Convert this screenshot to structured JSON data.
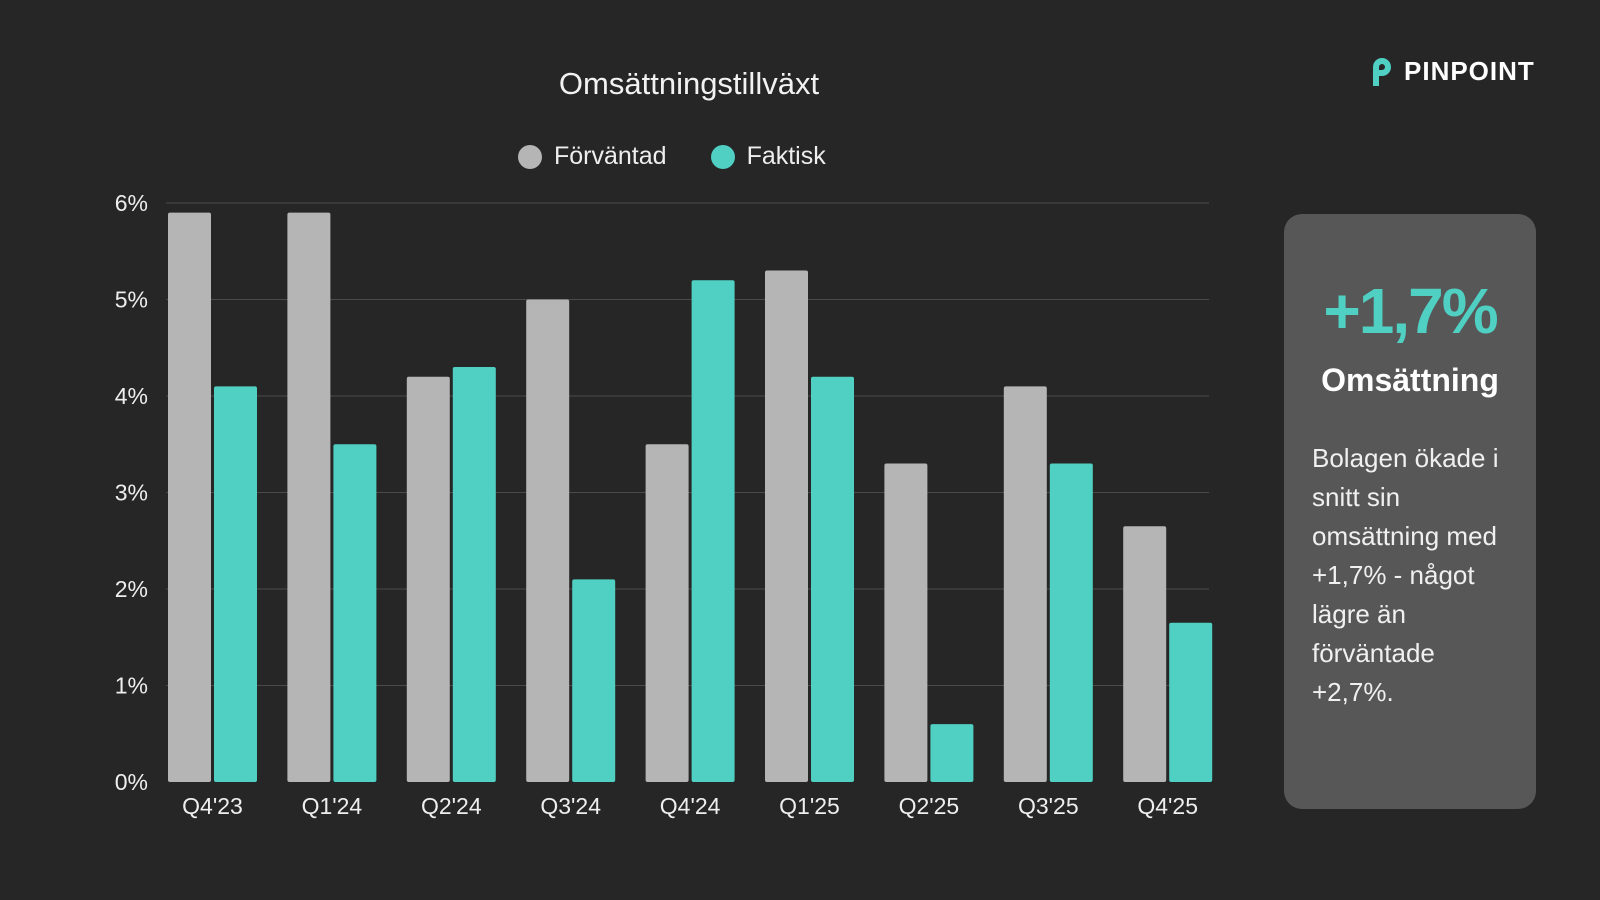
{
  "brand": {
    "name": "PINPOINT",
    "logo_color": "#4fd0c3"
  },
  "chart_data": {
    "type": "bar",
    "title": "Omsättningstillväxt",
    "categories": [
      "Q4'23",
      "Q1'24",
      "Q2'24",
      "Q3'24",
      "Q4'24",
      "Q1'25",
      "Q2'25",
      "Q3'25",
      "Q4'25"
    ],
    "series": [
      {
        "name": "Förväntad",
        "color": "#b5b5b5",
        "values": [
          5.9,
          5.9,
          4.2,
          5.0,
          3.5,
          5.3,
          3.3,
          4.1,
          2.65
        ]
      },
      {
        "name": "Faktisk",
        "color": "#4fd0c3",
        "values": [
          4.1,
          3.5,
          4.3,
          2.1,
          5.2,
          4.2,
          0.6,
          3.3,
          1.65
        ]
      }
    ],
    "ylim": [
      0,
      6
    ],
    "yticks": [
      "0%",
      "1%",
      "2%",
      "3%",
      "4%",
      "5%",
      "6%"
    ],
    "grid": true,
    "legend": "top-center"
  },
  "card": {
    "value": "+1,7%",
    "label": "Omsättning",
    "description": "Bolagen ökade i snitt sin omsättning med +1,7% - något lägre än förväntade +2,7%."
  }
}
